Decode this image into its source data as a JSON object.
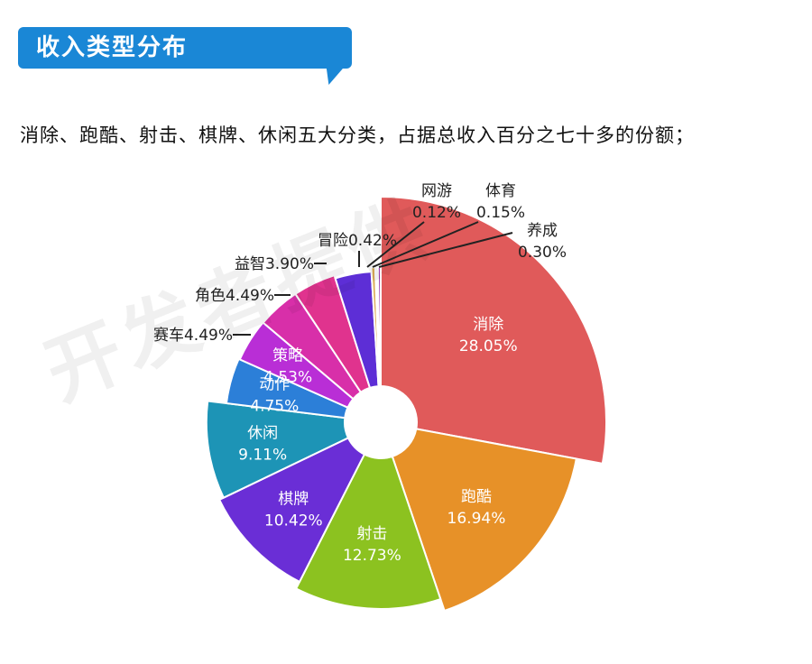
{
  "header": {
    "title": "收入类型分布"
  },
  "subtitle": "消除、跑酷、射击、棋牌、休闲五大分类，占据总收入百分之七十多的份额；",
  "watermark": "开发者提供",
  "chart_data": {
    "type": "pie",
    "variant": "rose-donut",
    "start_angle_deg": 0,
    "clockwise": true,
    "slices": [
      {
        "label": "消除",
        "value": 28.05,
        "value_text": "28.05%",
        "color": "#e05a5a"
      },
      {
        "label": "跑酷",
        "value": 16.94,
        "value_text": "16.94%",
        "color": "#e79128"
      },
      {
        "label": "射击",
        "value": 12.73,
        "value_text": "12.73%",
        "color": "#8cc220"
      },
      {
        "label": "棋牌",
        "value": 10.42,
        "value_text": "10.42%",
        "color": "#6a2ed6"
      },
      {
        "label": "休闲",
        "value": 9.11,
        "value_text": "9.11%",
        "color": "#1d94b6"
      },
      {
        "label": "动作",
        "value": 4.75,
        "value_text": "4.75%",
        "color": "#2c7fd8"
      },
      {
        "label": "策略",
        "value": 4.53,
        "value_text": "4.53%",
        "color": "#b92ed6"
      },
      {
        "label": "赛车",
        "value": 4.49,
        "value_text": "赛车4.49%",
        "color": "#d82fa9"
      },
      {
        "label": "角色",
        "value": 4.49,
        "value_text": "角色4.49%",
        "color": "#e0338e"
      },
      {
        "label": "益智",
        "value": 3.9,
        "value_text": "益智3.90%",
        "color": "#5d2ed6"
      },
      {
        "label": "冒险",
        "value": 0.42,
        "value_text": "冒险0.42%",
        "color": "#dcae5a"
      },
      {
        "label": "网游",
        "value": 0.12,
        "value_text": "0.12%",
        "color": "#9bb83a"
      },
      {
        "label": "体育",
        "value": 0.15,
        "value_text": "0.15%",
        "color": "#3aa05a"
      },
      {
        "label": "养成",
        "value": 0.3,
        "value_text": "0.30%",
        "color": "#9c3eb0"
      }
    ]
  }
}
